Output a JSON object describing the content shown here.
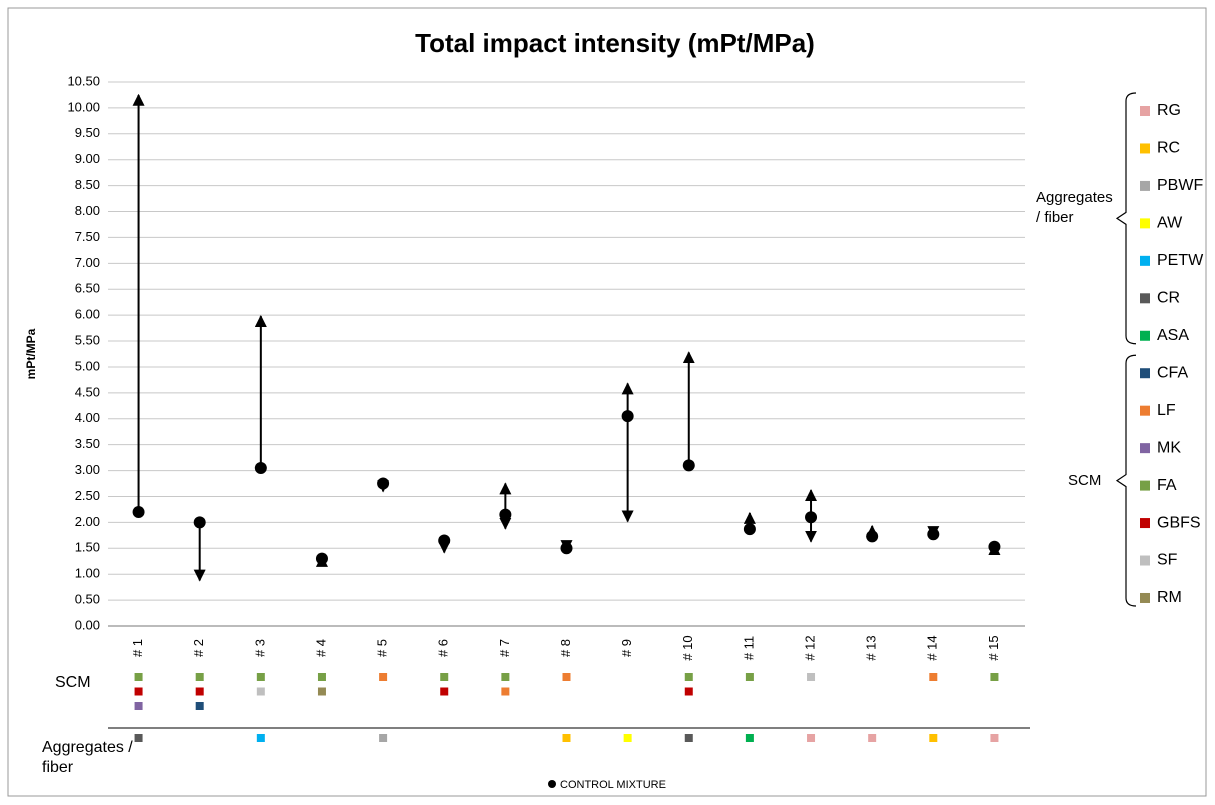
{
  "chart_data": {
    "type": "range",
    "title": "Total impact intensity (mPt/MPa)",
    "y_label": "mPt/MPa",
    "categories": [
      "# 1",
      "# 2",
      "# 3",
      "# 4",
      "# 5",
      "# 6",
      "# 7",
      "# 8",
      "# 9",
      "# 10",
      "# 11",
      "# 12",
      "# 13",
      "# 14",
      "# 15"
    ],
    "series": [
      {
        "name": "CONTROL MIXTURE",
        "color": "#000000",
        "values": [
          2.2,
          2.0,
          3.05,
          1.3,
          2.75,
          1.65,
          2.15,
          1.5,
          4.05,
          3.1,
          1.87,
          2.1,
          1.73,
          1.77,
          1.53
        ]
      }
    ],
    "range_high": [
      10.25,
      null,
      5.98,
      1.35,
      null,
      null,
      2.75,
      null,
      4.68,
      5.28,
      2.18,
      2.62,
      1.93,
      null,
      1.58
    ],
    "range_low": [
      null,
      0.88,
      null,
      null,
      2.6,
      1.42,
      1.88,
      1.45,
      2.02,
      null,
      null,
      1.63,
      null,
      1.72,
      null
    ],
    "ylim": [
      0,
      10.5
    ],
    "yticks": [
      {
        "value": 0,
        "label": "0.00"
      },
      {
        "value": 0.5,
        "label": "0.50"
      },
      {
        "value": 1,
        "label": "1.00"
      },
      {
        "value": 1.5,
        "label": "1.50"
      },
      {
        "value": 2,
        "label": "2.00"
      },
      {
        "value": 2.5,
        "label": "2.50"
      },
      {
        "value": 3,
        "label": "3.00"
      },
      {
        "value": 3.5,
        "label": "3.50"
      },
      {
        "value": 4,
        "label": "4.00"
      },
      {
        "value": 4.5,
        "label": "4.50"
      },
      {
        "value": 5,
        "label": "5.00"
      },
      {
        "value": 5.5,
        "label": "5.50"
      },
      {
        "value": 6,
        "label": "6.00"
      },
      {
        "value": 6.5,
        "label": "6.50"
      },
      {
        "value": 7,
        "label": "7.00"
      },
      {
        "value": 7.5,
        "label": "7.50"
      },
      {
        "value": 8,
        "label": "8.00"
      },
      {
        "value": 8.5,
        "label": "8.50"
      },
      {
        "value": 9,
        "label": "9.00"
      },
      {
        "value": 9.5,
        "label": "9.50"
      },
      {
        "value": 10,
        "label": "10.00"
      },
      {
        "value": 10.5,
        "label": "10.50"
      }
    ],
    "grid": true,
    "row_labels": [
      "SCM",
      "Aggregates / fiber"
    ],
    "scm": [
      [
        "FA",
        "GBFS",
        "MK"
      ],
      [
        "FA",
        "GBFS",
        "CFA"
      ],
      [
        "FA",
        "SF"
      ],
      [
        "FA",
        "RM"
      ],
      [
        "LF"
      ],
      [
        "FA",
        "GBFS"
      ],
      [
        "FA",
        "LF"
      ],
      [
        "LF"
      ],
      [],
      [
        "FA",
        "GBFS"
      ],
      [
        "FA"
      ],
      [
        "SF"
      ],
      [],
      [
        "LF"
      ],
      [
        "FA"
      ]
    ],
    "aggregates": [
      [
        "CR"
      ],
      [],
      [
        "PETW"
      ],
      [],
      [
        "PBWF"
      ],
      [],
      [],
      [
        "RC"
      ],
      [
        "AW"
      ],
      [
        "CR"
      ],
      [
        "ASA"
      ],
      [
        "RG"
      ],
      [
        "RG"
      ],
      [
        "RC"
      ],
      [
        "RG"
      ]
    ],
    "materials_legend": [
      {
        "group": "Aggregates / fiber",
        "items": [
          {
            "name": "RG",
            "color": "#e6a3a3"
          },
          {
            "name": "RC",
            "color": "#ffc000"
          },
          {
            "name": "PBWF",
            "color": "#a6a6a6"
          },
          {
            "name": "AW",
            "color": "#ffff00"
          },
          {
            "name": "PETW",
            "color": "#00b0f0"
          },
          {
            "name": "CR",
            "color": "#595959"
          },
          {
            "name": "ASA",
            "color": "#00b050"
          }
        ]
      },
      {
        "group": "SCM",
        "items": [
          {
            "name": "CFA",
            "color": "#1f4e79"
          },
          {
            "name": "LF",
            "color": "#ed7d31"
          },
          {
            "name": "MK",
            "color": "#8064a2"
          },
          {
            "name": "FA",
            "color": "#77a046"
          },
          {
            "name": "GBFS",
            "color": "#c00000"
          },
          {
            "name": "SF",
            "color": "#bfbfbf"
          },
          {
            "name": "RM",
            "color": "#948a54"
          }
        ]
      }
    ]
  }
}
